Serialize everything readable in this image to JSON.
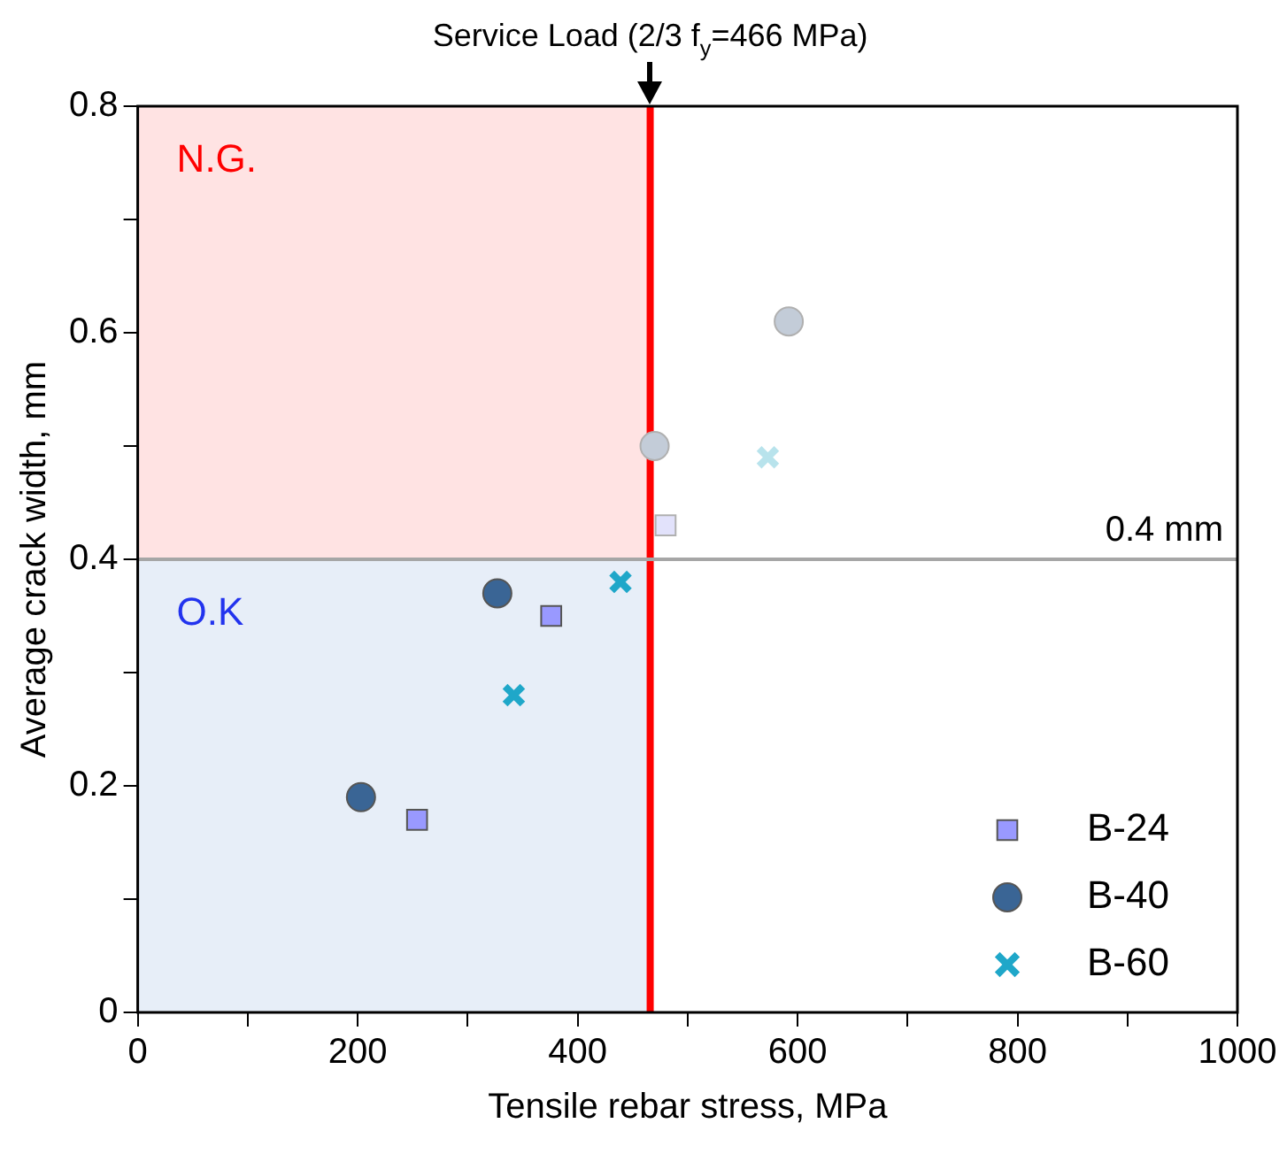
{
  "chart_data": {
    "type": "scatter",
    "xlabel": "Tensile rebar stress, MPa",
    "ylabel": "Average crack width, mm",
    "xlim": [
      0,
      1000
    ],
    "ylim": [
      0,
      0.8
    ],
    "xticks": [
      0,
      {
        "value": 100,
        "label": null
      },
      200,
      {
        "value": 300,
        "label": null
      },
      400,
      {
        "value": 500,
        "label": null
      },
      600,
      {
        "value": 700,
        "label": null
      },
      800,
      {
        "value": 900,
        "label": null
      },
      1000
    ],
    "yticks": [
      0,
      {
        "value": 0.1,
        "label": null
      },
      0.2,
      {
        "value": 0.3,
        "label": null
      },
      0.4,
      {
        "value": 0.5,
        "label": null
      },
      0.6,
      {
        "value": 0.7,
        "label": null
      },
      0.8
    ],
    "series": [
      {
        "name": "B-24",
        "marker": "square",
        "color": "#9999ff",
        "x": [
          254,
          376,
          480
        ],
        "values": [
          0.17,
          0.35,
          0.43
        ],
        "colors": [
          "#9999ff",
          "#9999ff",
          "#e2e2fb"
        ]
      },
      {
        "name": "B-40",
        "marker": "circle",
        "color": "#3a6595",
        "x": [
          203,
          327,
          470,
          592
        ],
        "values": [
          0.19,
          0.37,
          0.5,
          0.61
        ],
        "colors": [
          "#3a6595",
          "#3a6595",
          "#c3ccd8",
          "#c3ccd8"
        ]
      },
      {
        "name": "B-60",
        "marker": "cross",
        "color": "#1fa7c9",
        "x": [
          342,
          439,
          573
        ],
        "values": [
          0.28,
          0.38,
          0.49
        ],
        "colors": [
          "#1fa7c9",
          "#1fa7c9",
          "#b8e3ec"
        ]
      }
    ],
    "ref_lines": [
      {
        "axis": "x",
        "value": 466,
        "label": "Service Load (2/3 f$_{y}$=466 MPa)",
        "color": "#ff0000"
      },
      {
        "axis": "y",
        "value": 0.4,
        "label": "0.4 mm",
        "color": "#a6a6a6"
      }
    ],
    "bands": [
      {
        "axis": "y",
        "from": 0.4,
        "to": 0.8,
        "label": "N.G.",
        "color": "#ffe3e3"
      },
      {
        "axis": "y",
        "from": 0,
        "to": 0.4,
        "label": "O.K",
        "color": "#e7eef8"
      }
    ],
    "grid": false,
    "legend": "bottom right"
  }
}
